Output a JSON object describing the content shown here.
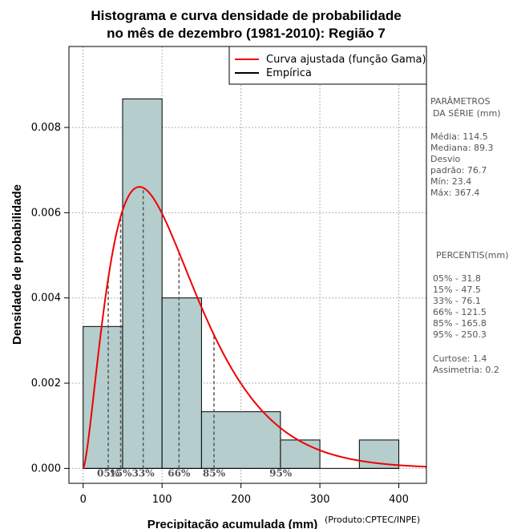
{
  "chart_data": {
    "type": "bar",
    "title": "Histograma e curva densidade de probabilidade",
    "subtitle": "no mês de dezembro (1981-2010): Região 7",
    "xlabel": "Precipitação acumulada (mm)",
    "ylabel": "Densidade de probabilidade",
    "credit": "(Produto:CPTEC/INPE)",
    "xlim": [
      -18,
      435
    ],
    "ylim": [
      -0.00035,
      0.0099
    ],
    "xticks": [
      0,
      100,
      200,
      300,
      400
    ],
    "yticks": [
      0.0,
      0.002,
      0.004,
      0.006,
      0.008
    ],
    "ytick_labels": [
      "0.000",
      "0.002",
      "0.004",
      "0.006",
      "0.008"
    ],
    "grid": true,
    "bars": [
      {
        "x0": 0,
        "x1": 50,
        "density": 0.00333
      },
      {
        "x0": 50,
        "x1": 100,
        "density": 0.00867
      },
      {
        "x0": 100,
        "x1": 150,
        "density": 0.004
      },
      {
        "x0": 150,
        "x1": 250,
        "density": 0.00133
      },
      {
        "x0": 250,
        "x1": 300,
        "density": 0.000667
      },
      {
        "x0": 300,
        "x1": 350,
        "density": 0.0
      },
      {
        "x0": 350,
        "x1": 400,
        "density": 0.000667
      }
    ],
    "gamma_fit": {
      "shape": 2.55,
      "scale": 46.0,
      "x_start": 0,
      "x_end": 435
    },
    "percentiles": [
      {
        "label": "05%",
        "value": 31.8
      },
      {
        "label": "15%",
        "value": 47.5
      },
      {
        "label": "33%",
        "value": 76.1
      },
      {
        "label": "66%",
        "value": 121.5
      },
      {
        "label": "85%",
        "value": 165.8
      },
      {
        "label": "95%",
        "value": 250.3
      }
    ],
    "legend": {
      "position": "top-right",
      "entries": [
        {
          "label": "Curva ajustada (função Gama)",
          "color": "#ee0000"
        },
        {
          "label": "Empírica",
          "color": "#000000"
        }
      ]
    }
  },
  "colors": {
    "bar_fill": "#b5cdcd",
    "curve": "#ee0000",
    "grid": "#b0b0b0",
    "percentile_line": "#555555",
    "side_text": "#555555"
  },
  "side_panel": {
    "params_title_1": "PARÂMETROS",
    "params_title_2": "DA SÉRIE (mm)",
    "params": [
      "Média:  114.5",
      "Mediana:  89.3",
      "Desvio",
      "padrão:  76.7",
      "Mín:  23.4",
      "Máx:  367.4"
    ],
    "percentis_title": "PERCENTIS(mm)",
    "percentis": [
      "05% -   31.8",
      "15% -   47.5",
      "33% -   76.1",
      "66% -   121.5",
      "85% -   165.8",
      "95% -   250.3"
    ],
    "extra": [
      "Curtose:  1.4",
      "Assimetria:  0.2"
    ]
  }
}
